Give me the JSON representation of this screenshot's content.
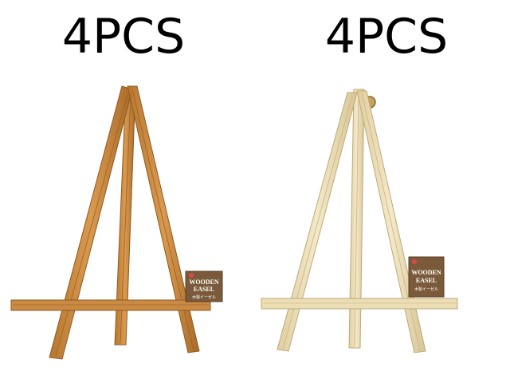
{
  "products": [
    {
      "quantity_label": "4PCS",
      "tag": {
        "line1": "WOODEN",
        "line2": "EASEL",
        "line3": "木製イーゼル"
      },
      "wood_color": "#C98A44",
      "wood_dark": "#9C6226",
      "wood_light": "#E0A966"
    },
    {
      "quantity_label": "4PCS",
      "tag": {
        "line1": "WOODEN",
        "line2": "EASEL",
        "line3": "木製イーゼル"
      },
      "wood_color": "#EBDDB4",
      "wood_dark": "#C9B487",
      "wood_light": "#F6EDD2"
    }
  ]
}
